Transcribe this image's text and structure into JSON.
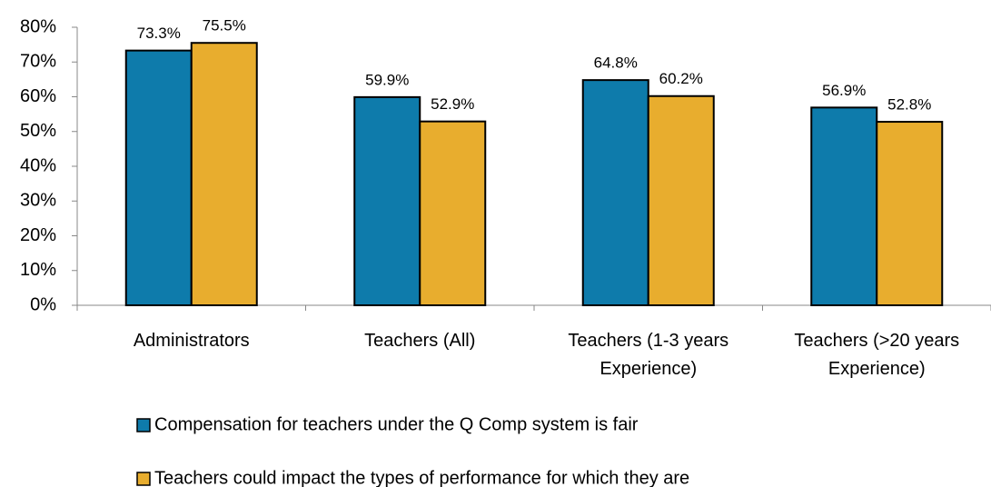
{
  "chart_data": {
    "type": "bar",
    "categories": [
      "Administrators",
      "Teachers (All)",
      "Teachers (1-3 years Experience)",
      "Teachers (>20 years Experience)"
    ],
    "series": [
      {
        "name": "Compensation for teachers under the Q Comp system is fair",
        "color": "#0e7bab",
        "values": [
          73.3,
          59.9,
          64.8,
          56.9
        ],
        "value_labels": [
          "73.3%",
          "59.9%",
          "64.8%",
          "56.9%"
        ]
      },
      {
        "name": "Teachers could impact the types of performance for which they are",
        "color": "#e8ad2e",
        "values": [
          75.5,
          52.9,
          60.2,
          52.8
        ],
        "value_labels": [
          "75.5%",
          "52.9%",
          "60.2%",
          "52.8%"
        ]
      }
    ],
    "ylim": [
      0,
      80
    ],
    "yticks": [
      {
        "value": 0,
        "label": "0%"
      },
      {
        "value": 10,
        "label": "10%"
      },
      {
        "value": 20,
        "label": "20%"
      },
      {
        "value": 30,
        "label": "30%"
      },
      {
        "value": 40,
        "label": "40%"
      },
      {
        "value": 50,
        "label": "50%"
      },
      {
        "value": 60,
        "label": "60%"
      },
      {
        "value": 70,
        "label": "70%"
      },
      {
        "value": 80,
        "label": "80%"
      }
    ],
    "grid": false,
    "legend": "bottom"
  }
}
